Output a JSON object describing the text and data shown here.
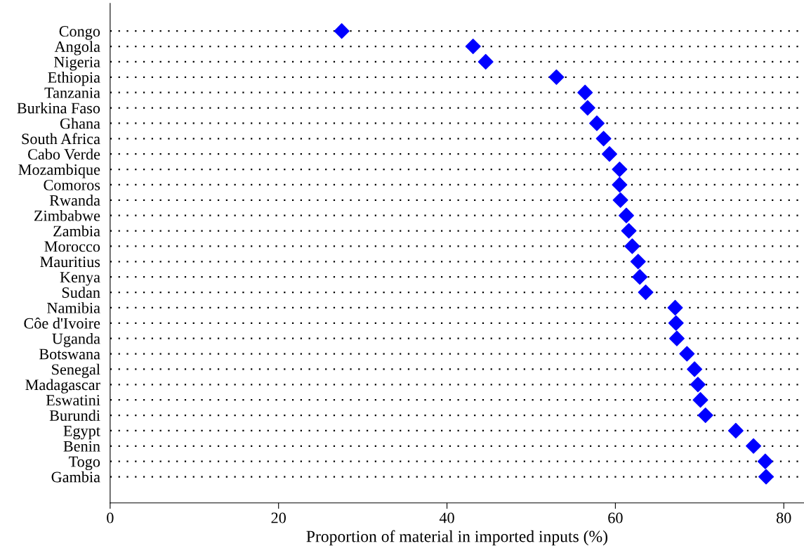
{
  "chart_data": {
    "type": "scatter",
    "orientation": "horizontal",
    "categories": [
      "Congo",
      "Angola",
      "Nigeria",
      "Ethiopia",
      "Tanzania",
      "Burkina Faso",
      "Ghana",
      "South Africa",
      "Cabo Verde",
      "Mozambique",
      "Comoros",
      "Rwanda",
      "Zimbabwe",
      "Zambia",
      "Morocco",
      "Mauritius",
      "Kenya",
      "Sudan",
      "Namibia",
      "Côe d'Ivoire",
      "Uganda",
      "Botswana",
      "Senegal",
      "Madagascar",
      "Eswatini",
      "Burundi",
      "Egypt",
      "Benin",
      "Togo",
      "Gambia"
    ],
    "series": [
      {
        "color": "#0000ff",
        "values": [
          27.5,
          43.1,
          44.6,
          53.0,
          56.4,
          56.7,
          57.8,
          58.6,
          59.3,
          60.5,
          60.5,
          60.6,
          61.3,
          61.6,
          62.0,
          62.7,
          62.9,
          63.6,
          67.1,
          67.2,
          67.3,
          68.5,
          69.4,
          69.8,
          70.1,
          70.7,
          74.3,
          76.4,
          77.8,
          77.9
        ]
      }
    ],
    "xlabel": "Proportion of material in imported inputs (%)",
    "xlim": [
      0,
      82.4
    ],
    "xticks": [
      0,
      20,
      40,
      60,
      80
    ],
    "grid": "y",
    "line_style": "dotted",
    "marker": "diamond"
  }
}
